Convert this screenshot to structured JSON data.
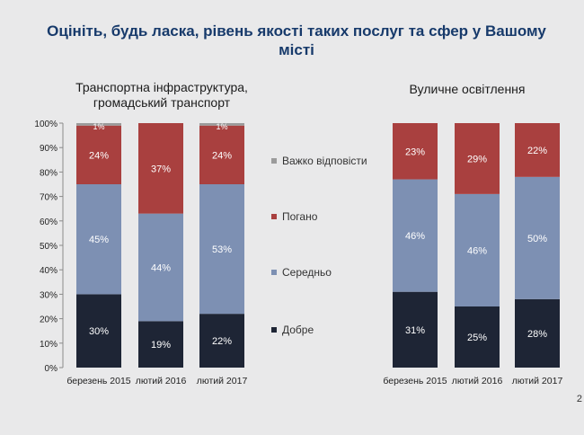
{
  "title": "Оцініть, будь ласка, рівень якості таких послуг та сфер у Вашому місті",
  "page_number": "2",
  "legend": [
    {
      "label": "Важко відповісти",
      "color": "#9b9b9b"
    },
    {
      "label": "Погано",
      "color": "#a9403f"
    },
    {
      "label": "Середньо",
      "color": "#7d90b3"
    },
    {
      "label": "Добре",
      "color": "#1e2535"
    }
  ],
  "chart_data": [
    {
      "type": "bar",
      "stacked": true,
      "title": "Транспортна інфраструктура, громадський транспорт",
      "categories": [
        "березень 2015",
        "лютий 2016",
        "лютий 2017"
      ],
      "yticks": [
        "0%",
        "10%",
        "20%",
        "30%",
        "40%",
        "50%",
        "60%",
        "70%",
        "80%",
        "90%",
        "100%"
      ],
      "ylim": [
        0,
        100
      ],
      "series": [
        {
          "name": "Добре",
          "values": [
            30,
            19,
            22
          ],
          "labels": [
            "30%",
            "19%",
            "22%"
          ]
        },
        {
          "name": "Середньо",
          "values": [
            45,
            44,
            53
          ],
          "labels": [
            "45%",
            "44%",
            "53%"
          ]
        },
        {
          "name": "Погано",
          "values": [
            24,
            37,
            24
          ],
          "labels": [
            "24%",
            "37%",
            "24%"
          ]
        },
        {
          "name": "Важко відповісти",
          "values": [
            1,
            0,
            1
          ],
          "labels": [
            "1%",
            "",
            "1%"
          ]
        }
      ]
    },
    {
      "type": "bar",
      "stacked": true,
      "title": "Вуличне освітлення",
      "categories": [
        "березень 2015",
        "лютий 2016",
        "лютий 2017"
      ],
      "ylim": [
        0,
        100
      ],
      "series": [
        {
          "name": "Добре",
          "values": [
            31,
            25,
            28
          ],
          "labels": [
            "31%",
            "25%",
            "28%"
          ]
        },
        {
          "name": "Середньо",
          "values": [
            46,
            46,
            50
          ],
          "labels": [
            "46%",
            "46%",
            "50%"
          ]
        },
        {
          "name": "Погано",
          "values": [
            23,
            29,
            22
          ],
          "labels": [
            "23%",
            "29%",
            "22%"
          ]
        }
      ]
    }
  ]
}
